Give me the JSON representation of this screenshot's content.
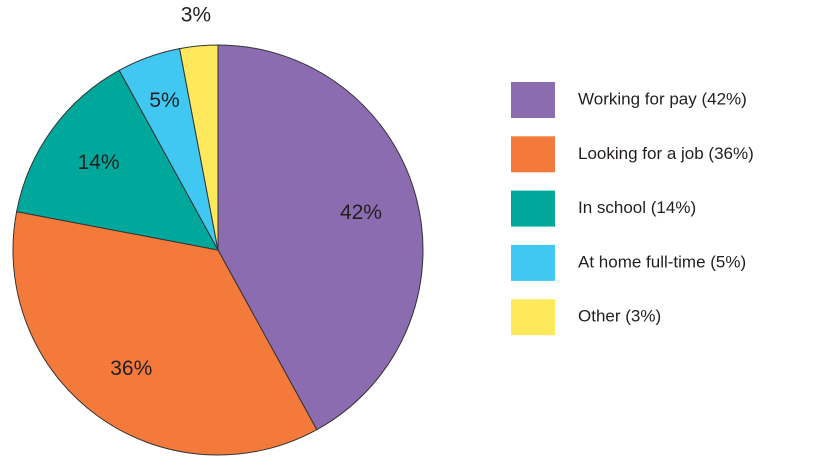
{
  "chart_data": {
    "type": "pie",
    "categories": [
      "Working for pay (42%)",
      "Looking for a job (36%)",
      "In school (14%)",
      "At home full-time (5%)",
      "Other (3%)"
    ],
    "values": [
      42,
      36,
      14,
      5,
      3
    ],
    "value_labels": [
      "42%",
      "36%",
      "14%",
      "5%",
      "3%"
    ],
    "colors": [
      "#8b6cb1",
      "#f47a3b",
      "#00a89c",
      "#40c8f2",
      "#fee95c"
    ],
    "legend": "right"
  }
}
